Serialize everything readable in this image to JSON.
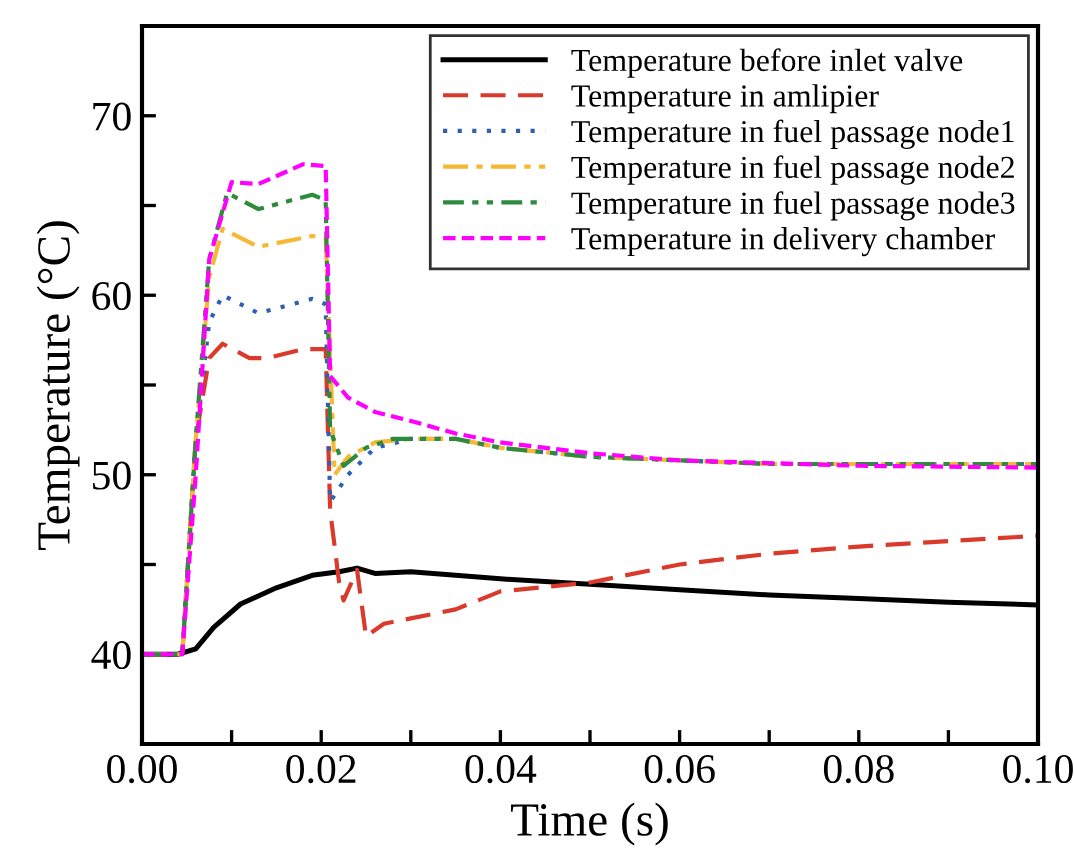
{
  "chart_data": {
    "type": "line",
    "xlabel": "Time (s)",
    "ylabel": "Temperature (°C)",
    "xlim": [
      0,
      0.1
    ],
    "ylim": [
      35,
      75
    ],
    "xticks": [
      {
        "value": 0,
        "label": "0.00"
      },
      {
        "value": 0.01,
        "label": null
      },
      {
        "value": 0.02,
        "label": "0.02"
      },
      {
        "value": 0.03,
        "label": null
      },
      {
        "value": 0.04,
        "label": "0.04"
      },
      {
        "value": 0.05,
        "label": null
      },
      {
        "value": 0.06,
        "label": "0.06"
      },
      {
        "value": 0.07,
        "label": null
      },
      {
        "value": 0.08,
        "label": "0.08"
      },
      {
        "value": 0.09,
        "label": null
      },
      {
        "value": 0.1,
        "label": "0.10"
      }
    ],
    "yticks": [
      {
        "value": 35,
        "label": null
      },
      40,
      {
        "value": 45,
        "label": null
      },
      50,
      {
        "value": 55,
        "label": null
      },
      60,
      {
        "value": 65,
        "label": null
      },
      70,
      {
        "value": 75,
        "label": null
      }
    ],
    "grid": false,
    "legend": "top right",
    "marker": "none",
    "series": [
      {
        "name": "Temperature before inlet valve",
        "color": "#000000",
        "line_style": "solid",
        "x": [
          0,
          0.004,
          0.006,
          0.008,
          0.011,
          0.015,
          0.019,
          0.022,
          0.024,
          0.026,
          0.03,
          0.04,
          0.05,
          0.06,
          0.07,
          0.08,
          0.09,
          0.1
        ],
        "values": [
          40,
          40,
          40.3,
          41.5,
          42.8,
          43.7,
          44.4,
          44.6,
          44.8,
          44.5,
          44.6,
          44.2,
          43.9,
          43.6,
          43.3,
          43.1,
          42.9,
          42.75
        ]
      },
      {
        "name": "Temperature in amlipier",
        "color": "#d93a2b",
        "line_style": "dashed",
        "x": [
          0,
          0.0045,
          0.006,
          0.0075,
          0.009,
          0.012,
          0.014,
          0.018,
          0.0205,
          0.021,
          0.022,
          0.0225,
          0.024,
          0.025,
          0.027,
          0.03,
          0.035,
          0.04,
          0.05,
          0.06,
          0.07,
          0.08,
          0.09,
          0.1
        ],
        "values": [
          40,
          40,
          52,
          56.5,
          57.3,
          56.5,
          56.5,
          57,
          57,
          48,
          44,
          43,
          44.7,
          41,
          41.7,
          42,
          42.5,
          43.5,
          44,
          45,
          45.6,
          46,
          46.3,
          46.6
        ]
      },
      {
        "name": "Temperature in fuel passage node1",
        "color": "#2f5fb3",
        "line_style": "dotted",
        "x": [
          0,
          0.0045,
          0.006,
          0.0075,
          0.009,
          0.013,
          0.019,
          0.0205,
          0.021,
          0.023,
          0.026,
          0.03,
          0.035,
          0.04,
          0.05,
          0.06,
          0.07,
          0.1
        ],
        "values": [
          40,
          40,
          52,
          58.5,
          60,
          59,
          59.8,
          59.5,
          48.5,
          50,
          51.5,
          52,
          52,
          51.5,
          51,
          50.8,
          50.6,
          50.6
        ]
      },
      {
        "name": "Temperature in fuel passage node2",
        "color": "#f5b935",
        "line_style": "dashdot",
        "x": [
          0,
          0.0045,
          0.006,
          0.0075,
          0.009,
          0.013,
          0.019,
          0.0205,
          0.0215,
          0.023,
          0.026,
          0.03,
          0.035,
          0.04,
          0.05,
          0.06,
          0.07,
          0.1
        ],
        "values": [
          40,
          40,
          52,
          61,
          63.7,
          62.7,
          63.3,
          63.2,
          50,
          51,
          51.8,
          52,
          52,
          51.5,
          51,
          50.8,
          50.6,
          50.6
        ]
      },
      {
        "name": "Temperature in fuel passage node3",
        "color": "#2e8b3e",
        "line_style": "dashdotdot",
        "x": [
          0,
          0.0045,
          0.006,
          0.0075,
          0.0095,
          0.013,
          0.019,
          0.0205,
          0.021,
          0.0225,
          0.025,
          0.028,
          0.035,
          0.04,
          0.05,
          0.06,
          0.07,
          0.1
        ],
        "values": [
          40,
          40,
          52,
          62,
          65.7,
          64.8,
          65.6,
          65.3,
          52.5,
          50.5,
          51.5,
          52,
          52,
          51.5,
          51,
          50.8,
          50.6,
          50.6
        ]
      },
      {
        "name": "Temperature in delivery chamber",
        "color": "#ff00ff",
        "line_style": "shortdash",
        "x": [
          0,
          0.0045,
          0.006,
          0.0075,
          0.01,
          0.013,
          0.018,
          0.0205,
          0.021,
          0.023,
          0.026,
          0.03,
          0.035,
          0.04,
          0.05,
          0.06,
          0.08,
          0.1
        ],
        "values": [
          40,
          40,
          50,
          62,
          66.3,
          66.2,
          67.3,
          67.2,
          55.5,
          54.3,
          53.5,
          53,
          52.3,
          51.8,
          51.2,
          50.8,
          50.5,
          50.4
        ]
      }
    ]
  }
}
